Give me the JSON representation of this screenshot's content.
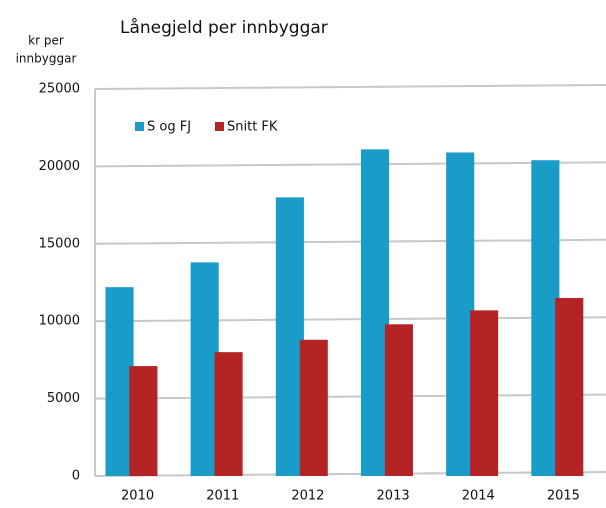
{
  "chart_data": {
    "type": "bar",
    "title": "Lånegjeld per innbyggar",
    "y_label": [
      "kr per",
      "innbyggar"
    ],
    "categories": [
      "2010",
      "2011",
      "2012",
      "2013",
      "2014",
      "2015"
    ],
    "series": [
      {
        "name": "S og FJ",
        "color": "#1a9cc9",
        "values": [
          12200,
          13800,
          18000,
          21100,
          20900,
          20400
        ]
      },
      {
        "name": "Snitt FK",
        "color": "#b52424",
        "values": [
          7100,
          8000,
          8800,
          9800,
          10700,
          11500
        ]
      }
    ],
    "ylim": [
      0,
      25000
    ],
    "yticks": [
      0,
      5000,
      10000,
      15000,
      20000,
      25000
    ],
    "grid": true,
    "legend": "top-left"
  }
}
